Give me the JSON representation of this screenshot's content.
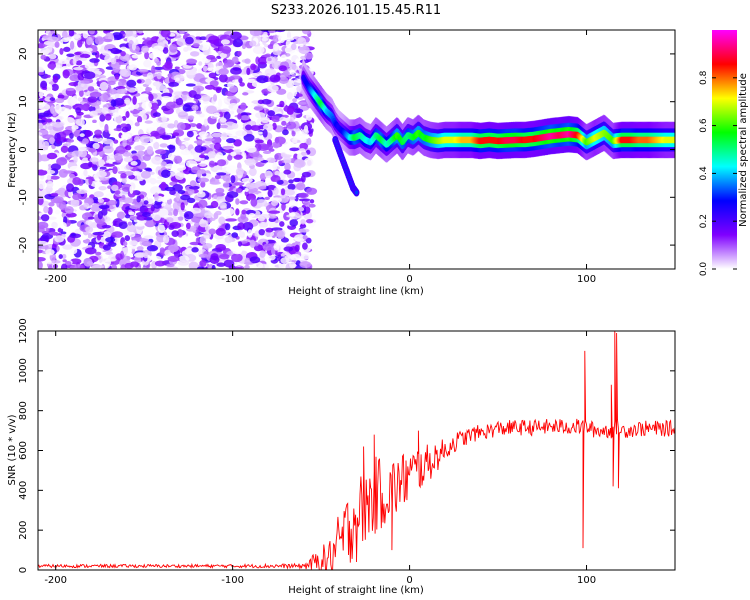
{
  "chart_data": [
    {
      "type": "heatmap",
      "title": "S233.2026.101.15.45.R11",
      "xlabel": "Height of straight line (km)",
      "ylabel": "Frequency (Hz)",
      "xlim": [
        -210,
        150
      ],
      "ylim": [
        -25,
        25
      ],
      "xticks": [
        -200,
        -100,
        0,
        100
      ],
      "yticks": [
        -20,
        -10,
        0,
        10,
        20
      ],
      "xtick_labels": [
        "-200",
        "-100",
        "0",
        "100"
      ],
      "ytick_labels": [
        "-20",
        "-10",
        "0",
        "10",
        "20"
      ],
      "noise_region_x": [
        -210,
        -55
      ],
      "ridge": {
        "x": [
          -60,
          -57,
          -53,
          -50,
          -47,
          -44,
          -42,
          -40,
          -37,
          -34,
          -31,
          -28,
          -25,
          -22,
          -19,
          -16,
          -13,
          -10,
          -7,
          -4,
          -1,
          2,
          5,
          8,
          12,
          16,
          20,
          25,
          30,
          35,
          40,
          45,
          50,
          55,
          60,
          65,
          70,
          75,
          80,
          85,
          90,
          95,
          100,
          105,
          110,
          115,
          120,
          125,
          130,
          135,
          140,
          145,
          150
        ],
        "freq": [
          15,
          13,
          11,
          9.5,
          8,
          7,
          5.5,
          4.5,
          3.5,
          2.5,
          2.5,
          3,
          2,
          1.5,
          3,
          2,
          1,
          2,
          3,
          1.5,
          3,
          2.5,
          3.5,
          2.5,
          2,
          1.8,
          2,
          2,
          2,
          2,
          1.8,
          2,
          1.8,
          1.9,
          2,
          2,
          2.2,
          2.5,
          2.8,
          3,
          3.2,
          3,
          1.5,
          2.5,
          3.5,
          1.8,
          2,
          2,
          2,
          2,
          2,
          2,
          2
        ],
        "amplitude": [
          0.25,
          0.3,
          0.45,
          0.55,
          0.4,
          0.35,
          0.3,
          0.25,
          0.3,
          0.4,
          0.55,
          0.5,
          0.45,
          0.4,
          0.5,
          0.55,
          0.45,
          0.5,
          0.6,
          0.55,
          0.5,
          0.55,
          0.6,
          0.55,
          0.6,
          0.65,
          0.7,
          0.7,
          0.75,
          0.75,
          0.85,
          0.85,
          0.85,
          0.9,
          0.9,
          0.85,
          0.85,
          0.9,
          0.95,
          0.9,
          0.95,
          0.85,
          0.6,
          0.7,
          0.65,
          0.6,
          0.85,
          0.85,
          0.8,
          0.8,
          0.75,
          0.7,
          0.7
        ]
      },
      "branch": {
        "x": [
          -42,
          -40,
          -38,
          -36,
          -34,
          -32,
          -30
        ],
        "freq": [
          2,
          0,
          -2,
          -4,
          -6,
          -8,
          -9
        ]
      },
      "colorbar": {
        "label": "Normalized spectral amplitude",
        "range": [
          0.0,
          1.0
        ],
        "ticks": [
          0.0,
          0.2,
          0.4,
          0.6,
          0.8
        ],
        "tick_labels": [
          "0.0",
          "0.2",
          "0.4",
          "0.6",
          "0.8"
        ],
        "colormap": [
          "#ffffff",
          "#7f00ff",
          "#0000ff",
          "#00ffff",
          "#00ff00",
          "#ffff00",
          "#ff0000",
          "#ff00ff"
        ]
      }
    },
    {
      "type": "line",
      "title": "",
      "xlabel": "Height of straight line (km)",
      "ylabel": "SNR (10 * v/v)",
      "xlim": [
        -210,
        150
      ],
      "ylim": [
        0,
        1200
      ],
      "xticks": [
        -200,
        -100,
        0,
        100
      ],
      "yticks": [
        0,
        200,
        400,
        600,
        800,
        1000,
        1200
      ],
      "xtick_labels": [
        "-200",
        "-100",
        "0",
        "100"
      ],
      "ytick_labels": [
        "0",
        "200",
        "400",
        "600",
        "800",
        "1000",
        "1200"
      ],
      "series": [
        {
          "name": "SNR",
          "color": "#ff0000",
          "x": [
            -210,
            -100,
            -60,
            -45,
            -38,
            -32,
            -26,
            -20,
            -15,
            -10,
            -5,
            0,
            5,
            10,
            15,
            20,
            25,
            30,
            35,
            40,
            45,
            50,
            60,
            70,
            80,
            90,
            96,
            98,
            100,
            105,
            110,
            113,
            115,
            117,
            120,
            130,
            140,
            150
          ],
          "envelope": [
            20,
            20,
            20,
            60,
            150,
            250,
            310,
            370,
            390,
            400,
            440,
            470,
            510,
            530,
            570,
            600,
            640,
            660,
            680,
            690,
            700,
            710,
            715,
            715,
            720,
            720,
            720,
            720,
            720,
            700,
            700,
            700,
            700,
            720,
            700,
            710,
            710,
            710
          ],
          "jitter": [
            8,
            8,
            12,
            100,
            180,
            200,
            200,
            200,
            180,
            170,
            150,
            140,
            120,
            100,
            80,
            60,
            50,
            45,
            40,
            40,
            40,
            40,
            40,
            40,
            40,
            40,
            40,
            40,
            40,
            40,
            40,
            40,
            40,
            40,
            40,
            40,
            40,
            40
          ],
          "spikes": [
            [
              -30,
              40
            ],
            [
              -26,
              620
            ],
            [
              -20,
              680
            ],
            [
              -10,
              100
            ],
            [
              -2,
              550
            ],
            [
              5,
              700
            ],
            [
              98,
              110
            ],
            [
              99,
              1100
            ],
            [
              114,
              930
            ],
            [
              115,
              420
            ],
            [
              116,
              1200
            ],
            [
              117,
              1190
            ],
            [
              118,
              410
            ]
          ]
        }
      ]
    }
  ]
}
